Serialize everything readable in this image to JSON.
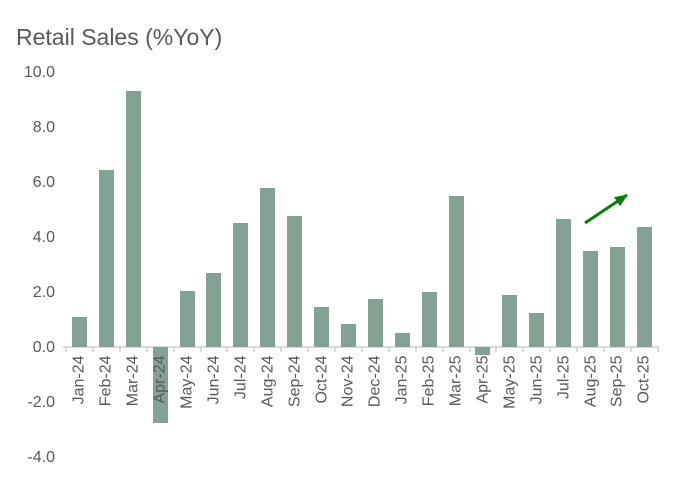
{
  "chart_data": {
    "type": "bar",
    "title": "Retail Sales (%YoY)",
    "categories": [
      "Jan-24",
      "Feb-24",
      "Mar-24",
      "Apr-24",
      "May-24",
      "Jun-24",
      "Jul-24",
      "Aug-24",
      "Sep-24",
      "Oct-24",
      "Nov-24",
      "Dec-24",
      "Jan-25",
      "Feb-25",
      "Mar-25",
      "Apr-25",
      "May-25",
      "Jun-25",
      "Jul-25",
      "Aug-25",
      "Sep-25",
      "Oct-25"
    ],
    "values": [
      1.1,
      6.45,
      9.3,
      -2.75,
      2.05,
      2.7,
      4.5,
      5.8,
      4.75,
      1.45,
      0.85,
      1.75,
      0.5,
      2.0,
      5.5,
      -0.3,
      1.9,
      1.25,
      4.65,
      3.5,
      3.65,
      4.35
    ],
    "xlabel": "",
    "ylabel": "",
    "ylim": [
      -4.0,
      10.0
    ],
    "ytick_labels": [
      "10.0",
      "8.0",
      "6.0",
      "4.0",
      "2.0",
      "0.0",
      "-2.0",
      "-4.0"
    ],
    "grid": "off",
    "legend": "none",
    "colors": {
      "bar_fill": "#84A293",
      "text": "#595959",
      "axis": "#D9D9D9",
      "arrow": "#0B7D0B"
    },
    "annotation": {
      "type": "arrow",
      "direction": "up-right",
      "location": "above Aug-25 to Oct-25 bars"
    }
  }
}
